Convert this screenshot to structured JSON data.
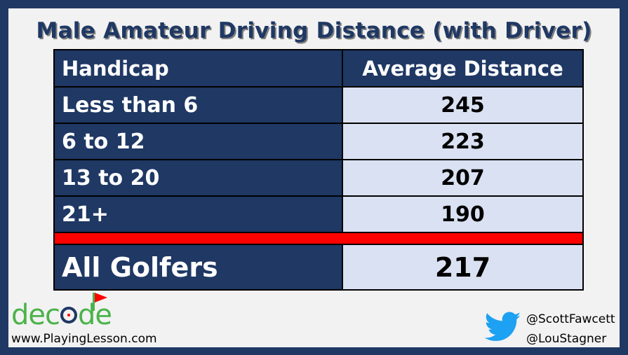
{
  "title": "Male Amateur Driving Distance (with Driver)",
  "table": {
    "headers": [
      "Handicap",
      "Average Distance"
    ],
    "rows": [
      {
        "handicap": "Less than 6",
        "distance": "245"
      },
      {
        "handicap": "6 to 12",
        "distance": "223"
      },
      {
        "handicap": "13 to 20",
        "distance": "207"
      },
      {
        "handicap": "21+",
        "distance": "190"
      }
    ],
    "total": {
      "label": "All Golfers",
      "distance": "217"
    }
  },
  "branding": {
    "logo_text_before": "dec",
    "logo_text_after": "de",
    "website": "www.PlayingLesson.com"
  },
  "social": {
    "icon": "twitter-bird-icon",
    "handles": [
      "@ScottFawcett",
      "@LouStagner"
    ]
  },
  "colors": {
    "navy": "#1f3864",
    "light_blue": "#d9e1f2",
    "separator_red": "#ff0000",
    "logo_green": "#4ab34a",
    "twitter_blue": "#1da1f2"
  }
}
